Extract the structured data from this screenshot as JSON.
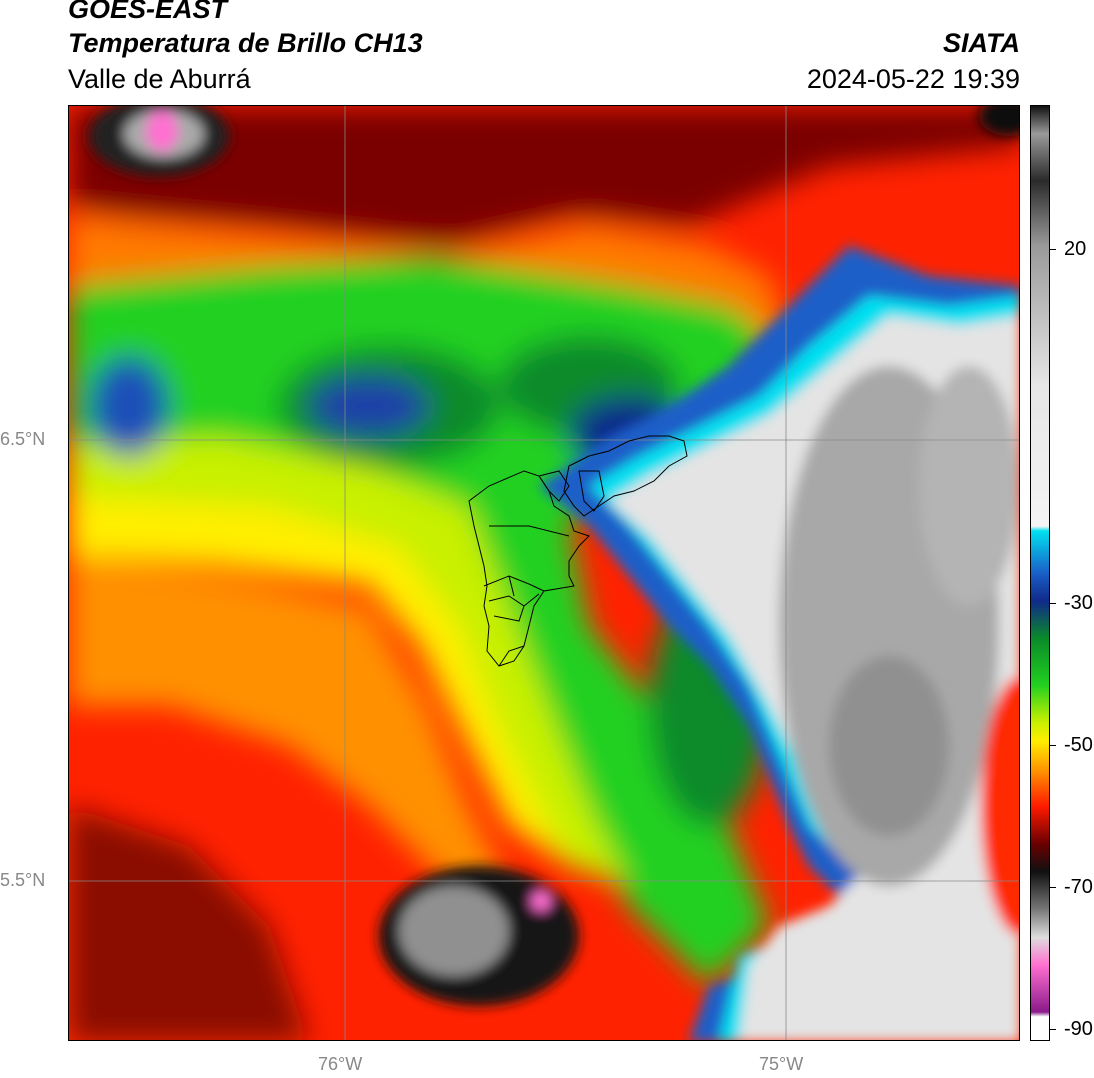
{
  "header": {
    "satellite": "GOES-EAST",
    "product": "Temperatura de Brillo CH13",
    "region": "Valle de Aburrá",
    "agency": "SIATA",
    "datetime": "2024-05-22 19:39"
  },
  "axes": {
    "lat_labels": [
      {
        "text": "6.5°N",
        "lat": 6.5
      },
      {
        "text": "5.5°N",
        "lat": 5.5
      }
    ],
    "lon_labels": [
      {
        "text": "76°W",
        "lon": -76.0
      },
      {
        "text": "75°W",
        "lon": -75.0
      }
    ]
  },
  "colorbar": {
    "ticks": [
      {
        "text": "20",
        "value": 20
      },
      {
        "text": "-30",
        "value": -30
      },
      {
        "text": "-50",
        "value": -50
      },
      {
        "text": "-70",
        "value": -70
      },
      {
        "text": "-90",
        "value": -90
      }
    ],
    "colors": {
      "warm_black": "#111111",
      "warm_gray": "#9a9a9a",
      "light_gray": "#e6e6e6",
      "cyan": "#00e0f0",
      "blue": "#1a5fc8",
      "navy": "#102a8a",
      "green_dark": "#0a8a2a",
      "green": "#22d020",
      "yellow_green": "#c8f000",
      "yellow": "#ffee00",
      "orange": "#ff9800",
      "red": "#ff1a00",
      "dark_red": "#6a0000",
      "pink": "#ff70d0",
      "purple": "#8a1a8a",
      "white": "#ffffff"
    }
  }
}
